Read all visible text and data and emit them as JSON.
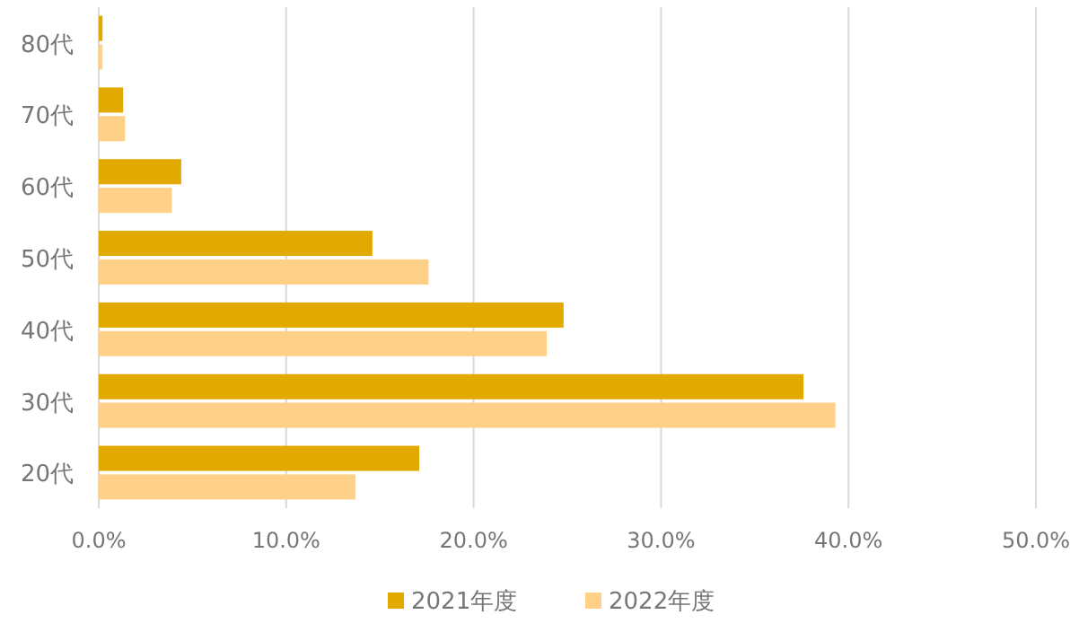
{
  "chart_data": {
    "type": "bar",
    "orientation": "horizontal",
    "categories": [
      "80代",
      "70代",
      "60代",
      "50代",
      "40代",
      "30代",
      "20代"
    ],
    "series": [
      {
        "name": "2021年度",
        "color": "#e2a900",
        "values": [
          0.2,
          1.3,
          4.4,
          14.6,
          24.8,
          37.6,
          17.1
        ]
      },
      {
        "name": "2022年度",
        "color": "#ffd188",
        "values": [
          0.2,
          1.4,
          3.9,
          17.6,
          23.9,
          39.3,
          13.7
        ]
      }
    ],
    "xlim": [
      0,
      50
    ],
    "xticks": [
      {
        "value": 0,
        "label": "0.0%"
      },
      {
        "value": 10,
        "label": "10.0%"
      },
      {
        "value": 20,
        "label": "20.0%"
      },
      {
        "value": 30,
        "label": "30.0%"
      },
      {
        "value": 40,
        "label": "40.0%"
      },
      {
        "value": 50,
        "label": "50.0%"
      }
    ],
    "grid": "x",
    "legend": "bottom"
  }
}
